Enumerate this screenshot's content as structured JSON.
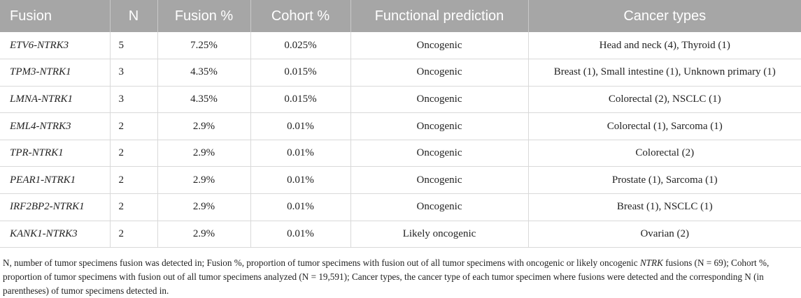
{
  "table": {
    "headers": {
      "fusion": "Fusion",
      "n": "N",
      "fusion_pct": "Fusion %",
      "cohort_pct": "Cohort %",
      "functional_prediction": "Functional prediction",
      "cancer_types": "Cancer types"
    },
    "rows": [
      {
        "fusion": "ETV6-NTRK3",
        "n": "5",
        "fusion_pct": "7.25%",
        "cohort_pct": "0.025%",
        "prediction": "Oncogenic",
        "cancer_types": "Head and neck (4), Thyroid (1)"
      },
      {
        "fusion": "TPM3-NTRK1",
        "n": "3",
        "fusion_pct": "4.35%",
        "cohort_pct": "0.015%",
        "prediction": "Oncogenic",
        "cancer_types": "Breast (1), Small intestine (1), Unknown primary (1)"
      },
      {
        "fusion": "LMNA-NTRK1",
        "n": "3",
        "fusion_pct": "4.35%",
        "cohort_pct": "0.015%",
        "prediction": "Oncogenic",
        "cancer_types": "Colorectal (2), NSCLC (1)"
      },
      {
        "fusion": "EML4-NTRK3",
        "n": "2",
        "fusion_pct": "2.9%",
        "cohort_pct": "0.01%",
        "prediction": "Oncogenic",
        "cancer_types": "Colorectal (1), Sarcoma (1)"
      },
      {
        "fusion": "TPR-NTRK1",
        "n": "2",
        "fusion_pct": "2.9%",
        "cohort_pct": "0.01%",
        "prediction": "Oncogenic",
        "cancer_types": "Colorectal (2)"
      },
      {
        "fusion": "PEAR1-NTRK1",
        "n": "2",
        "fusion_pct": "2.9%",
        "cohort_pct": "0.01%",
        "prediction": "Oncogenic",
        "cancer_types": "Prostate (1), Sarcoma (1)"
      },
      {
        "fusion": "IRF2BP2-NTRK1",
        "n": "2",
        "fusion_pct": "2.9%",
        "cohort_pct": "0.01%",
        "prediction": "Oncogenic",
        "cancer_types": "Breast (1), NSCLC (1)"
      },
      {
        "fusion": "KANK1-NTRK3",
        "n": "2",
        "fusion_pct": "2.9%",
        "cohort_pct": "0.01%",
        "prediction": "Likely oncogenic",
        "cancer_types": "Ovarian (2)"
      }
    ]
  },
  "footnote": {
    "part1": "N, number of tumor specimens fusion was detected in; Fusion %, proportion of tumor specimens with fusion out of all tumor specimens with oncogenic or likely oncogenic ",
    "italic": "NTRK",
    "part2": " fusions (N = 69); Cohort %, proportion of tumor specimens with fusion out of all tumor specimens analyzed (N = 19,591); Cancer types, the cancer type of each tumor specimen where fusions were detected and the corresponding N (in parentheses) of tumor specimens detected in."
  }
}
